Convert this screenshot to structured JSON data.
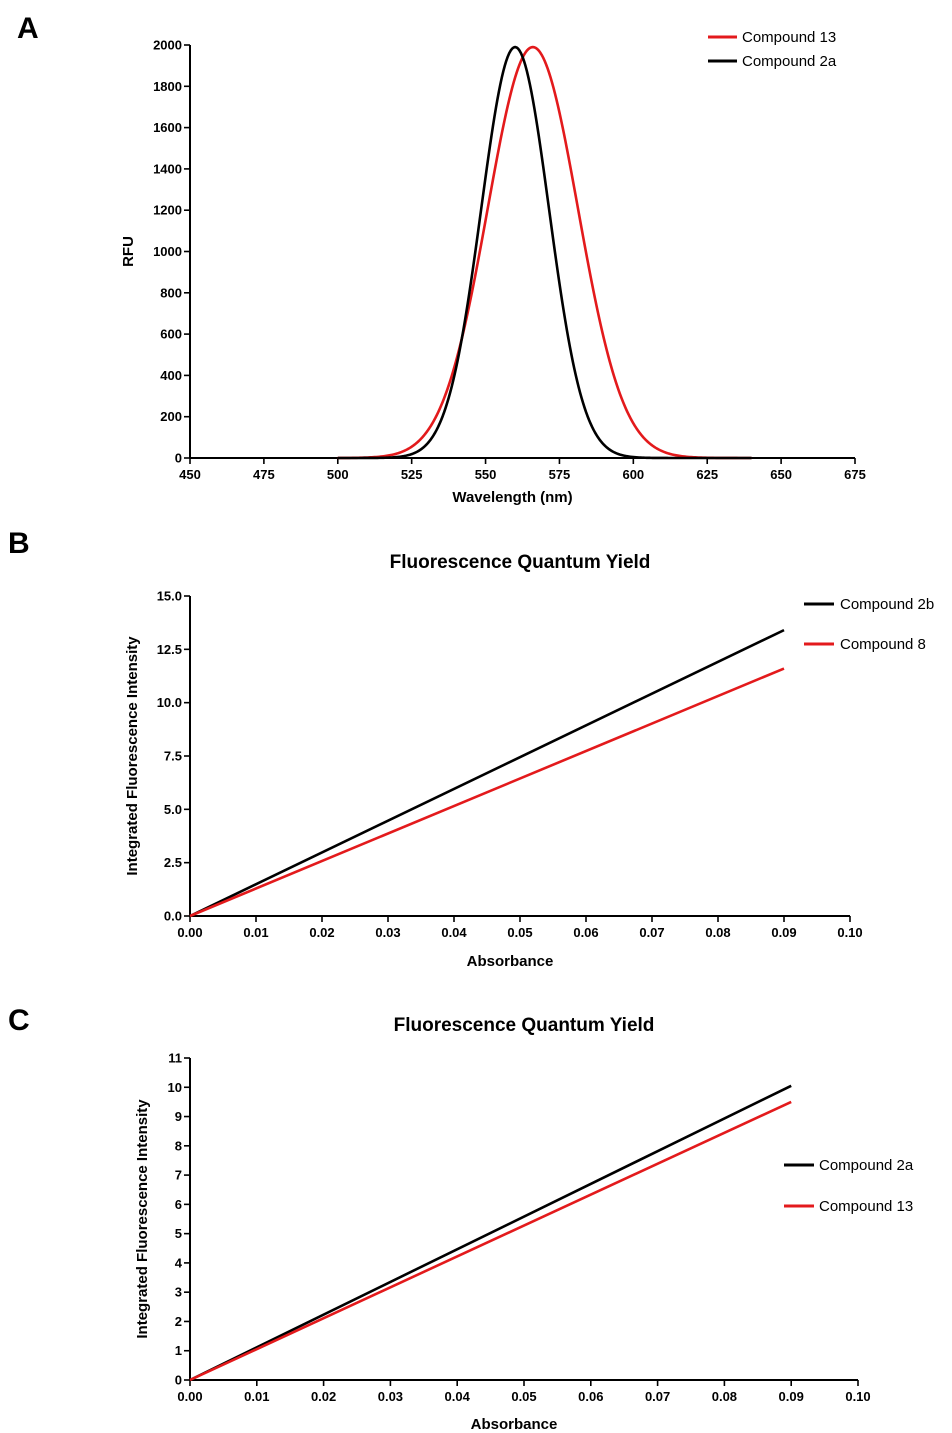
{
  "chart_data": [
    {
      "panel": "A",
      "type": "line",
      "title": "",
      "xlabel": "Wavelength (nm)",
      "ylabel": "RFU",
      "xlim": [
        450,
        675
      ],
      "ylim": [
        0,
        2000
      ],
      "xticks": [
        450,
        475,
        500,
        525,
        550,
        575,
        600,
        625,
        650,
        675
      ],
      "yticks": [
        0,
        200,
        400,
        600,
        800,
        1000,
        1200,
        1400,
        1600,
        1800,
        2000
      ],
      "tick_decimals_x": 0,
      "tick_decimals_y": 0,
      "grid": false,
      "legend_position": "top-right",
      "series": [
        {
          "name": "Compound 13",
          "color": "#e31a1c",
          "shape": "gaussian",
          "peak_x": 566,
          "peak_y": 1990,
          "fwhm": 36,
          "x_range": [
            500,
            640
          ]
        },
        {
          "name": "Compound 2a",
          "color": "#000000",
          "shape": "gaussian",
          "peak_x": 560,
          "peak_y": 1990,
          "fwhm": 27,
          "x_range": [
            500,
            640
          ]
        }
      ]
    },
    {
      "panel": "B",
      "type": "line",
      "title": "Fluorescence Quantum Yield",
      "xlabel": "Absorbance",
      "ylabel": "Integrated Fluorescence Intensity",
      "xlim": [
        0,
        0.1
      ],
      "ylim": [
        0,
        15
      ],
      "xticks": [
        0,
        0.01,
        0.02,
        0.03,
        0.04,
        0.05,
        0.06,
        0.07,
        0.08,
        0.09,
        0.1
      ],
      "yticks": [
        0,
        2.5,
        5,
        7.5,
        10,
        12.5,
        15
      ],
      "tick_decimals_x": 2,
      "tick_decimals_y": 1,
      "grid": false,
      "legend_position": "top-right",
      "series": [
        {
          "name": "Compound 2b",
          "color": "#000000",
          "x": [
            0,
            0.09
          ],
          "y": [
            0,
            13.4
          ]
        },
        {
          "name": "Compound 8",
          "color": "#e31a1c",
          "x": [
            0,
            0.09
          ],
          "y": [
            0,
            11.6
          ]
        }
      ]
    },
    {
      "panel": "C",
      "type": "line",
      "title": "Fluorescence Quantum Yield",
      "xlabel": "Absorbance",
      "ylabel": "Integrated Fluorescence Intensity",
      "xlim": [
        0,
        0.1
      ],
      "ylim": [
        0,
        11
      ],
      "xticks": [
        0,
        0.01,
        0.02,
        0.03,
        0.04,
        0.05,
        0.06,
        0.07,
        0.08,
        0.09,
        0.1
      ],
      "yticks": [
        0,
        1,
        2,
        3,
        4,
        5,
        6,
        7,
        8,
        9,
        10,
        11
      ],
      "tick_decimals_x": 2,
      "tick_decimals_y": 0,
      "grid": false,
      "legend_position": "right",
      "series": [
        {
          "name": "Compound 2a",
          "color": "#000000",
          "x": [
            0,
            0.09
          ],
          "y": [
            0,
            10.05
          ]
        },
        {
          "name": "Compound 13",
          "color": "#e31a1c",
          "x": [
            0,
            0.09
          ],
          "y": [
            0,
            9.5
          ]
        }
      ]
    }
  ]
}
